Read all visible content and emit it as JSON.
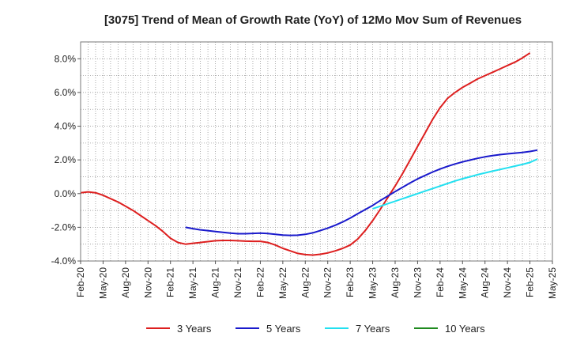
{
  "chart_data": {
    "type": "line",
    "title": "[3075]  Trend of Mean of Growth Rate (YoY) of 12Mo Mov Sum of Revenues",
    "xlabel": "",
    "ylabel": "",
    "ylim": [
      -4.0,
      9.0
    ],
    "yticks": [
      -4.0,
      -2.0,
      0.0,
      2.0,
      4.0,
      6.0,
      8.0
    ],
    "ytick_labels": [
      "-4.0%",
      "-2.0%",
      "0.0%",
      "2.0%",
      "4.0%",
      "6.0%",
      "8.0%"
    ],
    "x_index_range": [
      0,
      63
    ],
    "xtick_index": [
      0,
      3,
      6,
      9,
      12,
      15,
      18,
      21,
      24,
      27,
      30,
      33,
      36,
      39,
      42,
      45,
      48,
      51,
      54,
      57,
      60,
      63
    ],
    "xtick_labels": [
      "Feb-20",
      "May-20",
      "Aug-20",
      "Nov-20",
      "Feb-21",
      "May-21",
      "Aug-21",
      "Nov-21",
      "Feb-22",
      "May-22",
      "Aug-22",
      "Nov-22",
      "Feb-23",
      "May-23",
      "Aug-23",
      "Nov-23",
      "Feb-24",
      "May-24",
      "Aug-24",
      "Nov-24",
      "Feb-25",
      "May-25"
    ],
    "grid": true,
    "legend_position": "bottom",
    "series": [
      {
        "name": "3 Years",
        "color": "#dd1f1f",
        "points": [
          [
            0,
            0.05
          ],
          [
            1,
            0.1
          ],
          [
            2,
            0.05
          ],
          [
            3,
            -0.1
          ],
          [
            4,
            -0.3
          ],
          [
            5,
            -0.5
          ],
          [
            6,
            -0.75
          ],
          [
            7,
            -1.0
          ],
          [
            8,
            -1.3
          ],
          [
            9,
            -1.6
          ],
          [
            10,
            -1.9
          ],
          [
            11,
            -2.25
          ],
          [
            12,
            -2.65
          ],
          [
            13,
            -2.9
          ],
          [
            14,
            -3.0
          ],
          [
            15,
            -2.95
          ],
          [
            16,
            -2.9
          ],
          [
            17,
            -2.85
          ],
          [
            18,
            -2.8
          ],
          [
            19,
            -2.78
          ],
          [
            20,
            -2.78
          ],
          [
            21,
            -2.8
          ],
          [
            22,
            -2.82
          ],
          [
            23,
            -2.83
          ],
          [
            24,
            -2.83
          ],
          [
            25,
            -2.9
          ],
          [
            26,
            -3.05
          ],
          [
            27,
            -3.25
          ],
          [
            28,
            -3.4
          ],
          [
            29,
            -3.55
          ],
          [
            30,
            -3.62
          ],
          [
            31,
            -3.65
          ],
          [
            32,
            -3.6
          ],
          [
            33,
            -3.52
          ],
          [
            34,
            -3.4
          ],
          [
            35,
            -3.25
          ],
          [
            36,
            -3.05
          ],
          [
            37,
            -2.7
          ],
          [
            38,
            -2.2
          ],
          [
            39,
            -1.6
          ],
          [
            40,
            -0.95
          ],
          [
            41,
            -0.25
          ],
          [
            42,
            0.45
          ],
          [
            43,
            1.2
          ],
          [
            44,
            2.0
          ],
          [
            45,
            2.8
          ],
          [
            46,
            3.6
          ],
          [
            47,
            4.4
          ],
          [
            48,
            5.1
          ],
          [
            49,
            5.65
          ],
          [
            50,
            6.0
          ],
          [
            51,
            6.3
          ],
          [
            52,
            6.55
          ],
          [
            53,
            6.8
          ],
          [
            54,
            7.0
          ],
          [
            55,
            7.2
          ],
          [
            56,
            7.4
          ],
          [
            57,
            7.6
          ],
          [
            58,
            7.8
          ],
          [
            59,
            8.05
          ],
          [
            60,
            8.35
          ]
        ]
      },
      {
        "name": "5 Years",
        "color": "#1a1acc",
        "points": [
          [
            14,
            -2.0
          ],
          [
            15,
            -2.08
          ],
          [
            16,
            -2.15
          ],
          [
            17,
            -2.2
          ],
          [
            18,
            -2.25
          ],
          [
            19,
            -2.3
          ],
          [
            20,
            -2.35
          ],
          [
            21,
            -2.38
          ],
          [
            22,
            -2.38
          ],
          [
            23,
            -2.36
          ],
          [
            24,
            -2.35
          ],
          [
            25,
            -2.37
          ],
          [
            26,
            -2.42
          ],
          [
            27,
            -2.46
          ],
          [
            28,
            -2.48
          ],
          [
            29,
            -2.47
          ],
          [
            30,
            -2.42
          ],
          [
            31,
            -2.33
          ],
          [
            32,
            -2.2
          ],
          [
            33,
            -2.05
          ],
          [
            34,
            -1.88
          ],
          [
            35,
            -1.68
          ],
          [
            36,
            -1.45
          ],
          [
            37,
            -1.2
          ],
          [
            38,
            -0.95
          ],
          [
            39,
            -0.7
          ],
          [
            40,
            -0.42
          ],
          [
            41,
            -0.15
          ],
          [
            42,
            0.12
          ],
          [
            43,
            0.38
          ],
          [
            44,
            0.63
          ],
          [
            45,
            0.87
          ],
          [
            46,
            1.08
          ],
          [
            47,
            1.28
          ],
          [
            48,
            1.46
          ],
          [
            49,
            1.62
          ],
          [
            50,
            1.76
          ],
          [
            51,
            1.88
          ],
          [
            52,
            1.99
          ],
          [
            53,
            2.09
          ],
          [
            54,
            2.18
          ],
          [
            55,
            2.25
          ],
          [
            56,
            2.31
          ],
          [
            57,
            2.36
          ],
          [
            58,
            2.4
          ],
          [
            59,
            2.44
          ],
          [
            60,
            2.5
          ],
          [
            61,
            2.58
          ]
        ]
      },
      {
        "name": "7 Years",
        "color": "#22e0f0",
        "points": [
          [
            39,
            -0.9
          ],
          [
            40,
            -0.75
          ],
          [
            41,
            -0.6
          ],
          [
            42,
            -0.45
          ],
          [
            43,
            -0.3
          ],
          [
            44,
            -0.15
          ],
          [
            45,
            0.0
          ],
          [
            46,
            0.15
          ],
          [
            47,
            0.3
          ],
          [
            48,
            0.45
          ],
          [
            49,
            0.6
          ],
          [
            50,
            0.75
          ],
          [
            51,
            0.88
          ],
          [
            52,
            1.0
          ],
          [
            53,
            1.12
          ],
          [
            54,
            1.23
          ],
          [
            55,
            1.33
          ],
          [
            56,
            1.43
          ],
          [
            57,
            1.53
          ],
          [
            58,
            1.63
          ],
          [
            59,
            1.73
          ],
          [
            60,
            1.85
          ],
          [
            61,
            2.05
          ]
        ]
      },
      {
        "name": "10 Years",
        "color": "#1f8a1f",
        "points": []
      }
    ]
  }
}
